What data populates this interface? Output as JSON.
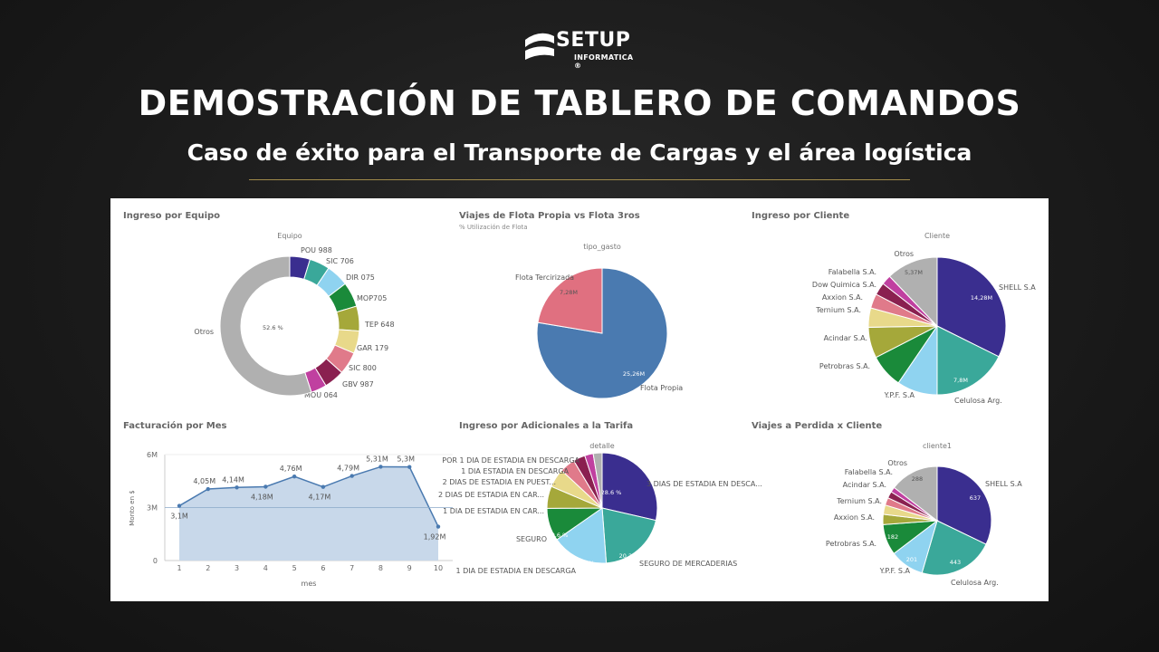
{
  "header": {
    "logo_name": "SETUP",
    "logo_sub": "INFORMATICA ®",
    "title": "DEMOSTRACIÓN DE TABLERO DE COMANDOS",
    "subtitle": "Caso de éxito para el Transporte de Cargas y el área logística"
  },
  "chart_data": [
    {
      "id": "ingreso-equipo",
      "type": "pie",
      "title": "Ingreso por Equipo",
      "legend_title": "Equipo",
      "donut": true,
      "slices": [
        {
          "label": "POU 988",
          "value": 4.5,
          "color": "#3a2e8f"
        },
        {
          "label": "SIC 706",
          "value": 4.5,
          "color": "#3aa89a"
        },
        {
          "label": "DIR 075",
          "value": 5.0,
          "color": "#8fd3f0"
        },
        {
          "label": "MOP705",
          "value": 5.5,
          "color": "#1a8a3a"
        },
        {
          "label": "TEP 648",
          "value": 5.5,
          "color": "#a5a83a"
        },
        {
          "label": "GAR 179",
          "value": 5.0,
          "color": "#e8d98a"
        },
        {
          "label": "SIC 800",
          "value": 5.0,
          "color": "#e07a8a"
        },
        {
          "label": "GBV 987",
          "value": 4.5,
          "color": "#8a2050"
        },
        {
          "label": "MOU 064",
          "value": 3.5,
          "color": "#c040a0"
        },
        {
          "label": "Otros",
          "value": 52.6,
          "color": "#b0b0b0",
          "data_label": "52.6 %"
        }
      ]
    },
    {
      "id": "viajes-flota",
      "type": "pie",
      "title": "Viajes de Flota Propia vs Flota 3ros",
      "subtitle": "% Utilización de Flota",
      "legend_title": "tipo_gasto",
      "slices": [
        {
          "label": "Flota Propia",
          "value": 25.26,
          "color": "#4a7ab0",
          "data_label": "25,26M"
        },
        {
          "label": "Flota Tercirizada",
          "value": 7.28,
          "color": "#e07080",
          "data_label": "7,28M"
        }
      ]
    },
    {
      "id": "ingreso-cliente",
      "type": "pie",
      "title": "Ingreso por Cliente",
      "legend_title": "Cliente",
      "slices": [
        {
          "label": "SHELL S.A",
          "value": 14.28,
          "color": "#3a2e8f",
          "data_label": "14,28M"
        },
        {
          "label": "Celulosa Arg.",
          "value": 7.8,
          "color": "#3aa89a",
          "data_label": "7,8M"
        },
        {
          "label": "Y.P.F. S.A",
          "value": 4.2,
          "color": "#8fd3f0"
        },
        {
          "label": "Petrobras S.A.",
          "value": 3.5,
          "color": "#1a8a3a"
        },
        {
          "label": "Acindar S.A.",
          "value": 3.2,
          "color": "#a5a83a"
        },
        {
          "label": "Ternium S.A.",
          "value": 2.0,
          "color": "#e8d98a"
        },
        {
          "label": "Axxion S.A.",
          "value": 1.5,
          "color": "#e07a8a"
        },
        {
          "label": "Dow Quimica S.A.",
          "value": 1.3,
          "color": "#8a2050"
        },
        {
          "label": "Falabella S.A.",
          "value": 1.0,
          "color": "#c040a0"
        },
        {
          "label": "Otros",
          "value": 5.37,
          "color": "#b0b0b0",
          "data_label": "5,37M"
        }
      ]
    },
    {
      "id": "facturacion-mes",
      "type": "area",
      "title": "Facturación por Mes",
      "xlabel": "mes",
      "ylabel": "Monto en $",
      "ylim": [
        0,
        6
      ],
      "yticks": [
        "0",
        "3M",
        "6M"
      ],
      "x": [
        1,
        2,
        3,
        4,
        5,
        6,
        7,
        8,
        9,
        10
      ],
      "values": [
        3.1,
        4.05,
        4.14,
        4.18,
        4.76,
        4.17,
        4.79,
        5.31,
        5.3,
        1.92
      ],
      "data_labels": [
        "3,1M",
        "4,05M",
        "4,14M",
        "4,18M",
        "4,76M",
        "4,17M",
        "4,79M",
        "5,31M",
        "5,3M",
        "1,92M"
      ],
      "color": "#4a7ab0",
      "fill": "#c8d8ea",
      "reference_line": 3
    },
    {
      "id": "ingreso-adicionales",
      "type": "pie",
      "title": "Ingreso por Adicionales a la Tarifa",
      "legend_title": "detalle",
      "slices": [
        {
          "label": "3 DIAS DE ESTADIA EN DESCA...",
          "value": 28.6,
          "color": "#3a2e8f",
          "data_label": "28.6 %"
        },
        {
          "label": "SEGURO DE MERCADERIAS",
          "value": 20.2,
          "color": "#3aa89a",
          "data_label": "20.2 %"
        },
        {
          "label": "1 DIA DE ESTADIA EN DESCARGA",
          "value": 16.5,
          "color": "#8fd3f0",
          "data_label": "16.5 %"
        },
        {
          "label": "SEGURO",
          "value": 9.6,
          "color": "#1a8a3a",
          "data_label": "9.6 %"
        },
        {
          "label": "1 DIA DE ESTADIA EN CAR...",
          "value": 6.5,
          "color": "#a5a83a"
        },
        {
          "label": "2 DIAS DE ESTADIA EN CAR...",
          "value": 5.5,
          "color": "#e8d98a"
        },
        {
          "label": "2 DIAS DE ESTADIA EN PUEST...",
          "value": 4.5,
          "color": "#e07a8a"
        },
        {
          "label": "1 DIA ESTADIA EN DESCARGA",
          "value": 3.5,
          "color": "#8a2050"
        },
        {
          "label": "POR 1 DIA DE ESTADIA EN DESCARGA",
          "value": 2.5,
          "color": "#c040a0"
        },
        {
          "label": "",
          "value": 2.6,
          "color": "#b0b0b0"
        }
      ]
    },
    {
      "id": "viajes-perdida",
      "type": "pie",
      "title": "Viajes a Perdida x Cliente",
      "legend_title": "cliente1",
      "slices": [
        {
          "label": "SHELL S.A",
          "value": 637,
          "color": "#3a2e8f",
          "data_label": "637"
        },
        {
          "label": "Celulosa Arg.",
          "value": 443,
          "color": "#3aa89a",
          "data_label": "443"
        },
        {
          "label": "Y.P.F. S.A",
          "value": 201,
          "color": "#8fd3f0",
          "data_label": "201"
        },
        {
          "label": "Petrobras S.A.",
          "value": 182,
          "color": "#1a8a3a",
          "data_label": "182"
        },
        {
          "label": "Axxion S.A.",
          "value": 60,
          "color": "#a5a83a"
        },
        {
          "label": "Ternium S.A.",
          "value": 55,
          "color": "#e8d98a"
        },
        {
          "label": "Acindar S.A.",
          "value": 45,
          "color": "#e07a8a"
        },
        {
          "label": "Falabella S.A.",
          "value": 40,
          "color": "#8a2050"
        },
        {
          "label": "",
          "value": 30,
          "color": "#c040a0"
        },
        {
          "label": "Otros",
          "value": 288,
          "color": "#b0b0b0",
          "data_label": "288"
        }
      ]
    }
  ]
}
